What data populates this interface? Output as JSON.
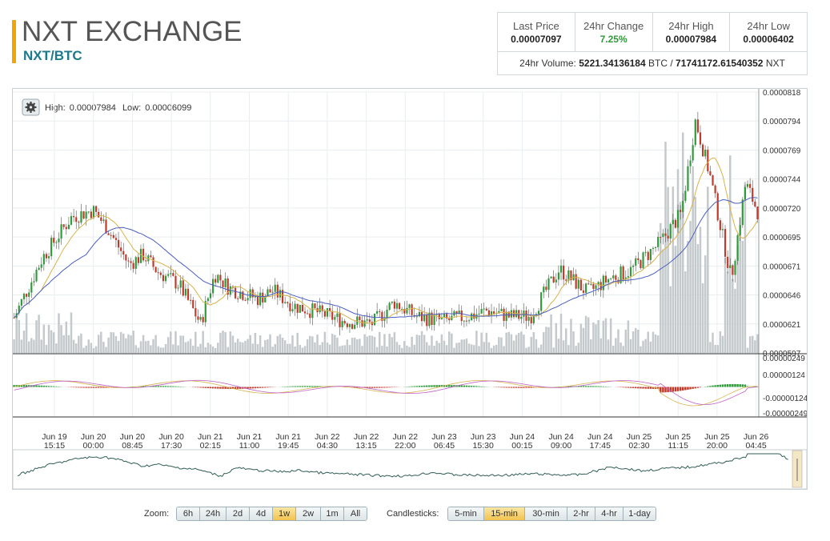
{
  "header": {
    "title": "NXT EXCHANGE",
    "pair": "NXT/BTC"
  },
  "stats": {
    "last_price_label": "Last Price",
    "last_price": "0.00007097",
    "change_label": "24hr Change",
    "change": "7.25%",
    "high_label": "24hr High",
    "high": "0.00007984",
    "low_label": "24hr Low",
    "low": "0.00006402",
    "volume_prefix": "24hr Volume:",
    "volume_btc": "5221.34136184",
    "volume_btc_unit": "BTC /",
    "volume_nxt": "71741172.61540352",
    "volume_nxt_unit": "NXT"
  },
  "chart_info": {
    "high_label": "High:",
    "high": "0.00007984",
    "low_label": "Low:",
    "low": "0.00006099"
  },
  "colors": {
    "up": "#2e9a3a",
    "down": "#c0392b",
    "ma_fast": "#d7b24a",
    "ma_slow": "#4a5fc1",
    "volume": "#c4c9cc",
    "navigator": "#2f5d55",
    "accent": "#f0a500"
  },
  "chart_data": {
    "type": "line",
    "price_axis": [
      "0.0000818",
      "0.0000794",
      "0.0000769",
      "0.0000744",
      "0.0000720",
      "0.0000695",
      "0.0000671",
      "0.0000646",
      "0.0000621",
      "0.0000597"
    ],
    "macd_axis": [
      "0.00000249",
      "0.00000124",
      "-0.00000124",
      "-0.00000249"
    ],
    "ylim": [
      5.97e-05,
      8.18e-05
    ],
    "x_labels": [
      [
        "Jun 19",
        "15:15"
      ],
      [
        "Jun 20",
        "00:00"
      ],
      [
        "Jun 20",
        "08:45"
      ],
      [
        "Jun 20",
        "17:30"
      ],
      [
        "Jun 21",
        "02:15"
      ],
      [
        "Jun 21",
        "11:00"
      ],
      [
        "Jun 21",
        "19:45"
      ],
      [
        "Jun 22",
        "04:30"
      ],
      [
        "Jun 22",
        "13:15"
      ],
      [
        "Jun 22",
        "22:00"
      ],
      [
        "Jun 23",
        "06:45"
      ],
      [
        "Jun 23",
        "15:30"
      ],
      [
        "Jun 24",
        "00:15"
      ],
      [
        "Jun 24",
        "09:00"
      ],
      [
        "Jun 24",
        "17:45"
      ],
      [
        "Jun 25",
        "02:30"
      ],
      [
        "Jun 25",
        "11:15"
      ],
      [
        "Jun 25",
        "20:00"
      ],
      [
        "Jun 26",
        "04:45"
      ]
    ],
    "price_series": [
      6.27e-05,
      6.78e-05,
      7.12e-05,
      7.18e-05,
      7.03e-05,
      6.72e-05,
      6.8e-05,
      6.66e-05,
      6.55e-05,
      6.22e-05,
      6.64e-05,
      6.52e-05,
      6.43e-05,
      6.5e-05,
      6.37e-05,
      6.32e-05,
      6.24e-05,
      6.22e-05,
      6.4e-05,
      6.28e-05,
      6.24e-05,
      6.29e-05,
      6.33e-05,
      6.28e-05,
      6.28e-05,
      6.68e-05,
      6.48e-05,
      6.6e-05,
      6.67e-05,
      6.9e-05,
      7.15e-05,
      7.94e-05,
      7.48e-05,
      6.6e-05,
      7.41e-05,
      7.12e-05
    ],
    "price_series_x": [
      0,
      2,
      4,
      5.5,
      6.5,
      8,
      9,
      10,
      11.5,
      13,
      14,
      15,
      17,
      18,
      19.5,
      21,
      23,
      25,
      26.5,
      28,
      30,
      32,
      33,
      34.5,
      36,
      38,
      40,
      41.5,
      43,
      45,
      46.5,
      47.5,
      48.5,
      50,
      51,
      52
    ]
  },
  "controls": {
    "zoom_label": "Zoom:",
    "zoom": [
      "6h",
      "24h",
      "2d",
      "4d",
      "1w",
      "2w",
      "1m",
      "All"
    ],
    "zoom_active": "1w",
    "candle_label": "Candlesticks:",
    "candles": [
      "5-min",
      "15-min",
      "30-min",
      "2-hr",
      "4-hr",
      "1-day"
    ],
    "candle_active": "15-min"
  }
}
